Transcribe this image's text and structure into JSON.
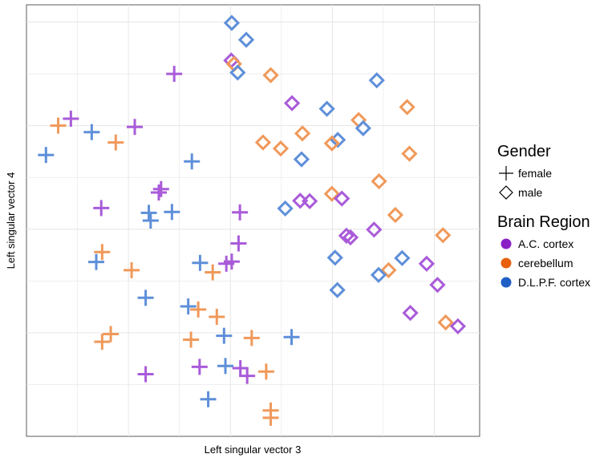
{
  "chart_data": {
    "type": "scatter",
    "title": "",
    "xlabel": "Left singular vector 3",
    "ylabel": "Left singular vector 4",
    "xlim": [
      0,
      1
    ],
    "ylim": [
      0,
      1
    ],
    "grid": true,
    "tick_labels_shown": false,
    "legend_placement": "right",
    "legends": {
      "shape": {
        "title": "Gender",
        "entries": [
          {
            "label": "female",
            "shape": "cross"
          },
          {
            "label": "male",
            "shape": "diamond"
          }
        ]
      },
      "color": {
        "title": "Brain Region",
        "entries": [
          {
            "label": "A.C. cortex",
            "color": "#8B1FC6"
          },
          {
            "label": "cerebellum",
            "color": "#E8600C"
          },
          {
            "label": "D.L.P.F. cortex",
            "color": "#1F5FC6"
          }
        ]
      }
    },
    "colors": {
      "A.C. cortex": "#A95BD9",
      "cerebellum": "#F0995A",
      "D.L.P.F. cortex": "#5E8FD9"
    },
    "points": [
      {
        "x": 0.453,
        "y": 0.958,
        "gender": "male",
        "region": "D.L.P.F. cortex"
      },
      {
        "x": 0.485,
        "y": 0.919,
        "gender": "male",
        "region": "D.L.P.F. cortex"
      },
      {
        "x": 0.452,
        "y": 0.871,
        "gender": "male",
        "region": "A.C. cortex"
      },
      {
        "x": 0.458,
        "y": 0.863,
        "gender": "male",
        "region": "cerebellum"
      },
      {
        "x": 0.466,
        "y": 0.843,
        "gender": "male",
        "region": "D.L.P.F. cortex"
      },
      {
        "x": 0.539,
        "y": 0.837,
        "gender": "male",
        "region": "cerebellum"
      },
      {
        "x": 0.773,
        "y": 0.825,
        "gender": "male",
        "region": "D.L.P.F. cortex"
      },
      {
        "x": 0.586,
        "y": 0.772,
        "gender": "male",
        "region": "A.C. cortex"
      },
      {
        "x": 0.663,
        "y": 0.759,
        "gender": "male",
        "region": "D.L.P.F. cortex"
      },
      {
        "x": 0.84,
        "y": 0.763,
        "gender": "male",
        "region": "cerebellum"
      },
      {
        "x": 0.733,
        "y": 0.733,
        "gender": "male",
        "region": "cerebellum"
      },
      {
        "x": 0.743,
        "y": 0.714,
        "gender": "male",
        "region": "D.L.P.F. cortex"
      },
      {
        "x": 0.609,
        "y": 0.702,
        "gender": "male",
        "region": "cerebellum"
      },
      {
        "x": 0.522,
        "y": 0.681,
        "gender": "male",
        "region": "cerebellum"
      },
      {
        "x": 0.687,
        "y": 0.687,
        "gender": "male",
        "region": "D.L.P.F. cortex"
      },
      {
        "x": 0.674,
        "y": 0.679,
        "gender": "male",
        "region": "cerebellum"
      },
      {
        "x": 0.561,
        "y": 0.667,
        "gender": "male",
        "region": "cerebellum"
      },
      {
        "x": 0.845,
        "y": 0.655,
        "gender": "male",
        "region": "cerebellum"
      },
      {
        "x": 0.607,
        "y": 0.642,
        "gender": "male",
        "region": "D.L.P.F. cortex"
      },
      {
        "x": 0.778,
        "y": 0.591,
        "gender": "male",
        "region": "cerebellum"
      },
      {
        "x": 0.674,
        "y": 0.562,
        "gender": "male",
        "region": "cerebellum"
      },
      {
        "x": 0.696,
        "y": 0.551,
        "gender": "male",
        "region": "A.C. cortex"
      },
      {
        "x": 0.604,
        "y": 0.546,
        "gender": "male",
        "region": "A.C. cortex"
      },
      {
        "x": 0.625,
        "y": 0.545,
        "gender": "male",
        "region": "A.C. cortex"
      },
      {
        "x": 0.571,
        "y": 0.528,
        "gender": "male",
        "region": "D.L.P.F. cortex"
      },
      {
        "x": 0.814,
        "y": 0.513,
        "gender": "male",
        "region": "cerebellum"
      },
      {
        "x": 0.767,
        "y": 0.479,
        "gender": "male",
        "region": "A.C. cortex"
      },
      {
        "x": 0.919,
        "y": 0.466,
        "gender": "male",
        "region": "cerebellum"
      },
      {
        "x": 0.706,
        "y": 0.465,
        "gender": "male",
        "region": "A.C. cortex"
      },
      {
        "x": 0.715,
        "y": 0.461,
        "gender": "male",
        "region": "A.C. cortex"
      },
      {
        "x": 0.681,
        "y": 0.414,
        "gender": "male",
        "region": "D.L.P.F. cortex"
      },
      {
        "x": 0.829,
        "y": 0.413,
        "gender": "male",
        "region": "D.L.P.F. cortex"
      },
      {
        "x": 0.883,
        "y": 0.4,
        "gender": "male",
        "region": "A.C. cortex"
      },
      {
        "x": 0.799,
        "y": 0.385,
        "gender": "male",
        "region": "cerebellum"
      },
      {
        "x": 0.777,
        "y": 0.374,
        "gender": "male",
        "region": "D.L.P.F. cortex"
      },
      {
        "x": 0.907,
        "y": 0.351,
        "gender": "male",
        "region": "A.C. cortex"
      },
      {
        "x": 0.686,
        "y": 0.339,
        "gender": "male",
        "region": "D.L.P.F. cortex"
      },
      {
        "x": 0.847,
        "y": 0.286,
        "gender": "male",
        "region": "A.C. cortex"
      },
      {
        "x": 0.925,
        "y": 0.264,
        "gender": "male",
        "region": "cerebellum"
      },
      {
        "x": 0.952,
        "y": 0.255,
        "gender": "male",
        "region": "A.C. cortex"
      },
      {
        "x": 0.326,
        "y": 0.84,
        "gender": "female",
        "region": "A.C. cortex"
      },
      {
        "x": 0.098,
        "y": 0.736,
        "gender": "female",
        "region": "A.C. cortex"
      },
      {
        "x": 0.07,
        "y": 0.72,
        "gender": "female",
        "region": "cerebellum"
      },
      {
        "x": 0.239,
        "y": 0.717,
        "gender": "female",
        "region": "A.C. cortex"
      },
      {
        "x": 0.144,
        "y": 0.705,
        "gender": "female",
        "region": "D.L.P.F. cortex"
      },
      {
        "x": 0.197,
        "y": 0.681,
        "gender": "female",
        "region": "cerebellum"
      },
      {
        "x": 0.043,
        "y": 0.652,
        "gender": "female",
        "region": "D.L.P.F. cortex"
      },
      {
        "x": 0.365,
        "y": 0.637,
        "gender": "female",
        "region": "D.L.P.F. cortex"
      },
      {
        "x": 0.297,
        "y": 0.573,
        "gender": "female",
        "region": "A.C. cortex"
      },
      {
        "x": 0.292,
        "y": 0.565,
        "gender": "female",
        "region": "A.C. cortex"
      },
      {
        "x": 0.165,
        "y": 0.529,
        "gender": "female",
        "region": "A.C. cortex"
      },
      {
        "x": 0.27,
        "y": 0.518,
        "gender": "female",
        "region": "D.L.P.F. cortex"
      },
      {
        "x": 0.321,
        "y": 0.52,
        "gender": "female",
        "region": "D.L.P.F. cortex"
      },
      {
        "x": 0.471,
        "y": 0.519,
        "gender": "female",
        "region": "A.C. cortex"
      },
      {
        "x": 0.274,
        "y": 0.5,
        "gender": "female",
        "region": "D.L.P.F. cortex"
      },
      {
        "x": 0.468,
        "y": 0.447,
        "gender": "female",
        "region": "A.C. cortex"
      },
      {
        "x": 0.167,
        "y": 0.427,
        "gender": "female",
        "region": "cerebellum"
      },
      {
        "x": 0.154,
        "y": 0.404,
        "gender": "female",
        "region": "D.L.P.F. cortex"
      },
      {
        "x": 0.383,
        "y": 0.402,
        "gender": "female",
        "region": "D.L.P.F. cortex"
      },
      {
        "x": 0.453,
        "y": 0.405,
        "gender": "female",
        "region": "A.C. cortex"
      },
      {
        "x": 0.441,
        "y": 0.4,
        "gender": "female",
        "region": "A.C. cortex"
      },
      {
        "x": 0.232,
        "y": 0.385,
        "gender": "female",
        "region": "cerebellum"
      },
      {
        "x": 0.411,
        "y": 0.38,
        "gender": "female",
        "region": "cerebellum"
      },
      {
        "x": 0.263,
        "y": 0.321,
        "gender": "female",
        "region": "D.L.P.F. cortex"
      },
      {
        "x": 0.357,
        "y": 0.301,
        "gender": "female",
        "region": "D.L.P.F. cortex"
      },
      {
        "x": 0.379,
        "y": 0.294,
        "gender": "female",
        "region": "cerebellum"
      },
      {
        "x": 0.42,
        "y": 0.277,
        "gender": "female",
        "region": "cerebellum"
      },
      {
        "x": 0.186,
        "y": 0.237,
        "gender": "female",
        "region": "cerebellum"
      },
      {
        "x": 0.436,
        "y": 0.233,
        "gender": "female",
        "region": "D.L.P.F. cortex"
      },
      {
        "x": 0.497,
        "y": 0.228,
        "gender": "female",
        "region": "cerebellum"
      },
      {
        "x": 0.585,
        "y": 0.23,
        "gender": "female",
        "region": "D.L.P.F. cortex"
      },
      {
        "x": 0.363,
        "y": 0.224,
        "gender": "female",
        "region": "cerebellum"
      },
      {
        "x": 0.167,
        "y": 0.219,
        "gender": "female",
        "region": "cerebellum"
      },
      {
        "x": 0.382,
        "y": 0.161,
        "gender": "female",
        "region": "A.C. cortex"
      },
      {
        "x": 0.439,
        "y": 0.163,
        "gender": "female",
        "region": "D.L.P.F. cortex"
      },
      {
        "x": 0.472,
        "y": 0.158,
        "gender": "female",
        "region": "A.C. cortex"
      },
      {
        "x": 0.529,
        "y": 0.15,
        "gender": "female",
        "region": "cerebellum"
      },
      {
        "x": 0.263,
        "y": 0.144,
        "gender": "female",
        "region": "A.C. cortex"
      },
      {
        "x": 0.487,
        "y": 0.14,
        "gender": "female",
        "region": "A.C. cortex"
      },
      {
        "x": 0.401,
        "y": 0.086,
        "gender": "female",
        "region": "D.L.P.F. cortex"
      },
      {
        "x": 0.539,
        "y": 0.06,
        "gender": "female",
        "region": "cerebellum"
      },
      {
        "x": 0.539,
        "y": 0.043,
        "gender": "female",
        "region": "cerebellum"
      }
    ]
  }
}
